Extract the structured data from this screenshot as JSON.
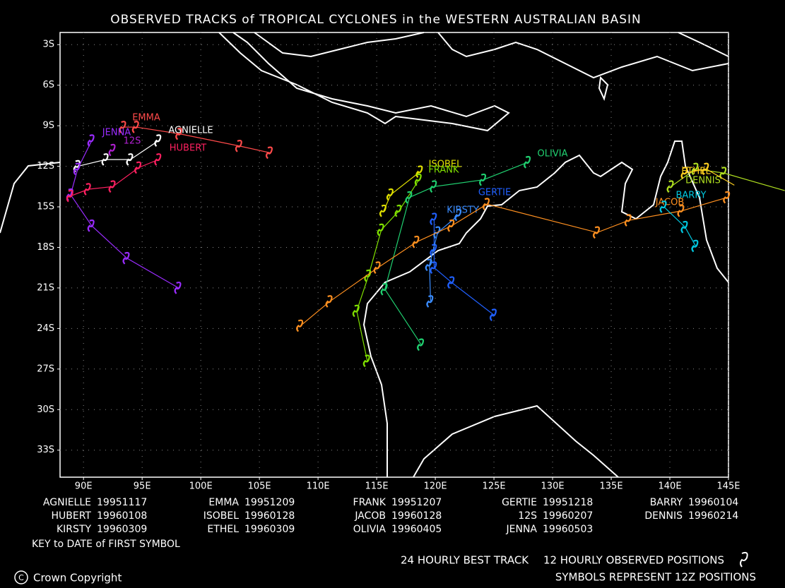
{
  "chart_data": {
    "type": "track-map",
    "title": "OBSERVED TRACKS of TROPICAL CYCLONES in the WESTERN AUSTRALIAN BASIN",
    "xlim": [
      88,
      145
    ],
    "ylim": [
      -35,
      -2.1
    ],
    "xticks": [
      {
        "value": 90,
        "label": "90E"
      },
      {
        "value": 95,
        "label": "95E"
      },
      {
        "value": 100,
        "label": "100E"
      },
      {
        "value": 105,
        "label": "105E"
      },
      {
        "value": 110,
        "label": "110E"
      },
      {
        "value": 115,
        "label": "115E"
      },
      {
        "value": 120,
        "label": "120E"
      },
      {
        "value": 125,
        "label": "125E"
      },
      {
        "value": 130,
        "label": "130E"
      },
      {
        "value": 135,
        "label": "135E"
      },
      {
        "value": 140,
        "label": "140E"
      },
      {
        "value": 145,
        "label": "145E"
      }
    ],
    "yticks": [
      {
        "value": -3,
        "label": "3S"
      },
      {
        "value": -6,
        "label": "6S"
      },
      {
        "value": -9,
        "label": "9S"
      },
      {
        "value": -12,
        "label": "12S"
      },
      {
        "value": -15,
        "label": "15S"
      },
      {
        "value": -18,
        "label": "18S"
      },
      {
        "value": -21,
        "label": "21S"
      },
      {
        "value": -24,
        "label": "24S"
      },
      {
        "value": -27,
        "label": "27S"
      },
      {
        "value": -30,
        "label": "30S"
      },
      {
        "value": -33,
        "label": "33S"
      }
    ],
    "grid": true,
    "series": [
      {
        "name": "EMMA",
        "color": "#ff4a4a",
        "lon": [
          93.4,
          94.5,
          98.2,
          103.3,
          105.9
        ],
        "lat": [
          -9.1,
          -9.1,
          -9.6,
          -10.5,
          -11.0
        ]
      },
      {
        "name": "AGNIELLE",
        "color": "#ffffff",
        "lon": [
          89.5,
          91.9,
          94.0,
          96.4
        ],
        "lat": [
          -12.0,
          -11.5,
          -11.5,
          -10.1
        ]
      },
      {
        "name": "JENNA",
        "color": "#9a2cff",
        "lon": [
          90.7,
          89.5,
          88.9,
          90.7,
          93.7,
          98.1
        ],
        "lat": [
          -10.1,
          -12.2,
          -14.1,
          -16.4,
          -18.8,
          -21.0
        ]
      },
      {
        "name": "12S",
        "color": "#b020d0",
        "lon": [
          92.5
        ],
        "lat": [
          -10.8
        ]
      },
      {
        "name": "HUBERT",
        "color": "#ff2060",
        "lon": [
          88.9,
          90.4,
          92.5,
          94.7,
          96.4
        ],
        "lat": [
          -14.2,
          -13.7,
          -13.5,
          -12.1,
          -11.5
        ]
      },
      {
        "name": "ISOBEL",
        "color": "#e0e000",
        "lon": [
          118.7,
          116.2,
          115.6
        ],
        "lat": [
          -12.4,
          -14.1,
          -15.3
        ]
      },
      {
        "name": "FRANK",
        "color": "#80e000",
        "lon": [
          118.6,
          116.9,
          115.4,
          114.3,
          113.3,
          114.2
        ],
        "lat": [
          -13.0,
          -15.3,
          -16.7,
          -20.1,
          -22.7,
          -26.4
        ]
      },
      {
        "name": "OLIVIA",
        "color": "#20d070",
        "lon": [
          127.9,
          124.1,
          119.9,
          117.8,
          115.7,
          118.8
        ],
        "lat": [
          -11.7,
          -13.0,
          -13.5,
          -14.3,
          -21.1,
          -25.2
        ]
      },
      {
        "name": "GERTIE",
        "color": "#2060ff",
        "lon": [
          119.9,
          119.9,
          119.9,
          121.4,
          125.0
        ],
        "lat": [
          -15.9,
          -18.2,
          -19.5,
          -20.6,
          -23.0
        ]
      },
      {
        "name": "KIRSTY",
        "color": "#3a8cff",
        "lon": [
          122.0,
          120.2,
          119.5,
          119.6
        ],
        "lat": [
          -15.6,
          -16.9,
          -19.3,
          -22.0
        ]
      },
      {
        "name": "JACOB",
        "color": "#ff9020",
        "lon": [
          108.5,
          111.0,
          115.1,
          118.4,
          121.4,
          124.4,
          133.8,
          136.5,
          141.0,
          144.9
        ],
        "lat": [
          -23.8,
          -22.0,
          -19.5,
          -17.6,
          -16.4,
          -14.8,
          -16.9,
          -16.0,
          -15.3,
          -14.3
        ]
      },
      {
        "name": "BARRY",
        "color": "#00c8e0",
        "lon": [
          139.5,
          141.3,
          142.2
        ],
        "lat": [
          -15.0,
          -16.5,
          -17.9
        ]
      },
      {
        "name": "DENNIS",
        "color": "#b0e020",
        "lon": [
          149.8,
          144.6,
          142.2,
          140.1
        ],
        "lat": [
          -13.8,
          -12.5,
          -12.2,
          -13.5
        ]
      },
      {
        "name": "ETHEL",
        "color": "#ffd020",
        "lon": [
          141.3,
          143.1,
          145.5
        ],
        "lat": [
          -12.5,
          -12.2,
          -13.4
        ]
      }
    ],
    "key": [
      {
        "name": "AGNIELLE",
        "date": "19951117"
      },
      {
        "name": "EMMA",
        "date": "19951209"
      },
      {
        "name": "FRANK",
        "date": "19951207"
      },
      {
        "name": "GERTIE",
        "date": "19951218"
      },
      {
        "name": "BARRY",
        "date": "19960104"
      },
      {
        "name": "HUBERT",
        "date": "19960108"
      },
      {
        "name": "ISOBEL",
        "date": "19960128"
      },
      {
        "name": "JACOB",
        "date": "19960128"
      },
      {
        "name": "12S",
        "date": "19960207"
      },
      {
        "name": "DENNIS",
        "date": "19960214"
      },
      {
        "name": "KIRSTY",
        "date": "19960309"
      },
      {
        "name": "ETHEL",
        "date": "19960309"
      },
      {
        "name": "OLIVIA",
        "date": "19960405"
      },
      {
        "name": "JENNA",
        "date": "19960503"
      }
    ],
    "key_title": "KEY to DATE of FIRST SYMBOL",
    "footer_track": "24 HOURLY BEST TRACK",
    "footer_positions": "12 HOURLY OBSERVED POSITIONS",
    "footer_symbols": "SYMBOLS REPRESENT 12Z POSITIONS",
    "copyright": "Crown Copyright"
  }
}
